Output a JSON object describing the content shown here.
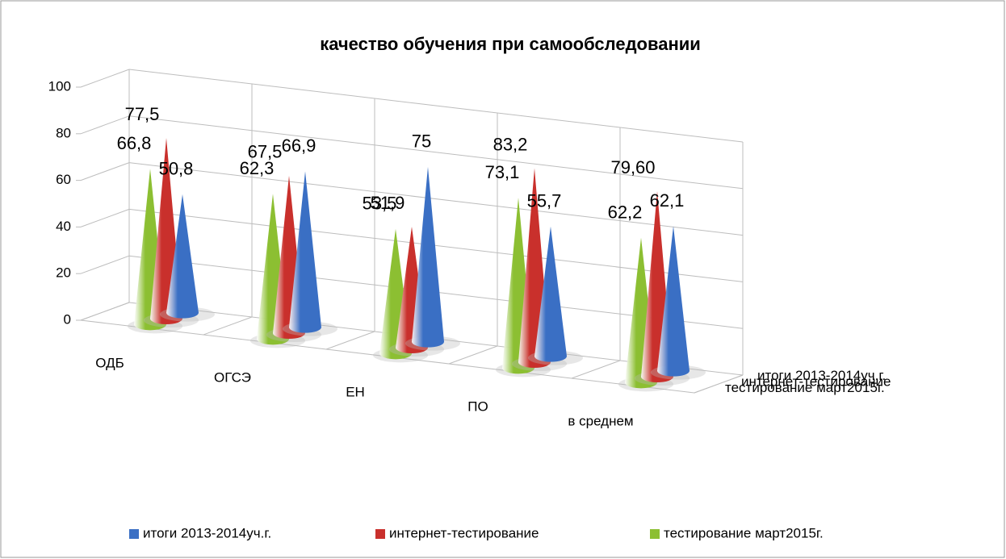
{
  "chart_data": {
    "type": "cone3d",
    "title": "качество обучения при самообследовании",
    "categories": [
      "ОДБ",
      "ОГСЭ",
      "ЕН",
      "ПО",
      "в среднем"
    ],
    "series": [
      {
        "name": "итоги 2013-2014уч.г.",
        "color": "#3a6fc4",
        "values": [
          50.8,
          66.9,
          75,
          55.7,
          62.1
        ],
        "value_labels": [
          "50,8",
          "66,9",
          "75",
          "55,7",
          "62,1"
        ]
      },
      {
        "name": "интернет-тестирование",
        "color": "#c9302c",
        "values": [
          77.5,
          67.5,
          51.9,
          83.2,
          79.6
        ],
        "value_labels": [
          "77,5",
          "67,5",
          "51,9",
          "83,2",
          "79,60"
        ]
      },
      {
        "name": "тестирование март2015г.",
        "color": "#8cbf32",
        "values": [
          66.8,
          62.3,
          53.5,
          73.1,
          62.2
        ],
        "value_labels": [
          "66,8",
          "62,3",
          "53,5",
          "73,1",
          "62,2"
        ]
      }
    ],
    "ylim": [
      0,
      100
    ],
    "yticks": [
      0,
      20,
      40,
      60,
      80,
      100
    ],
    "grid": true,
    "legend": "bottom"
  }
}
